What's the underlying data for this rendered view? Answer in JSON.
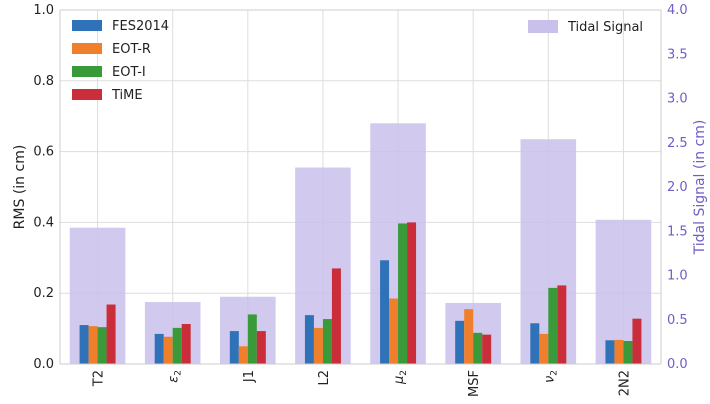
{
  "chart_data": {
    "type": "bar",
    "categories": [
      "T2",
      "ε2",
      "J1",
      "L2",
      "μ2",
      "MSF",
      "ν2",
      "2N2"
    ],
    "category_labels": [
      {
        "base": "T2",
        "sub": ""
      },
      {
        "base": "ε",
        "sub": "2"
      },
      {
        "base": "J1",
        "sub": ""
      },
      {
        "base": "L2",
        "sub": ""
      },
      {
        "base": "μ",
        "sub": "2"
      },
      {
        "base": "MSF",
        "sub": ""
      },
      {
        "base": "ν",
        "sub": "2"
      },
      {
        "base": "2N2",
        "sub": ""
      }
    ],
    "ylabel": "RMS (in cm)",
    "ylim": [
      0,
      1.0
    ],
    "yticks": [
      "0.0",
      "0.2",
      "0.4",
      "0.6",
      "0.8",
      "1.0"
    ],
    "y2label": "Tidal Signal (in cm)",
    "y2lim": [
      0,
      4.0
    ],
    "y2ticks": [
      "0.0",
      "0.5",
      "1.0",
      "1.5",
      "2.0",
      "2.5",
      "3.0",
      "3.5",
      "4.0"
    ],
    "grid": true,
    "series": [
      {
        "name": "FES2014",
        "color": "#2f72b8",
        "values": [
          0.11,
          0.085,
          0.093,
          0.138,
          0.293,
          0.122,
          0.115,
          0.067
        ]
      },
      {
        "name": "EOT-R",
        "color": "#f07f2c",
        "values": [
          0.107,
          0.077,
          0.05,
          0.102,
          0.185,
          0.155,
          0.085,
          0.068
        ]
      },
      {
        "name": "EOT-I",
        "color": "#3a9a3a",
        "values": [
          0.104,
          0.102,
          0.14,
          0.127,
          0.397,
          0.088,
          0.215,
          0.065
        ]
      },
      {
        "name": "TiME",
        "color": "#c92e3a",
        "values": [
          0.168,
          0.113,
          0.093,
          0.27,
          0.4,
          0.083,
          0.222,
          0.128
        ]
      }
    ],
    "tidal_signal": {
      "name": "Tidal Signal",
      "color": "#c9c1eb",
      "values": [
        1.54,
        0.7,
        0.76,
        2.22,
        2.72,
        0.69,
        2.54,
        1.63
      ]
    },
    "legend_left": "top-left",
    "legend_right": "top-right"
  }
}
